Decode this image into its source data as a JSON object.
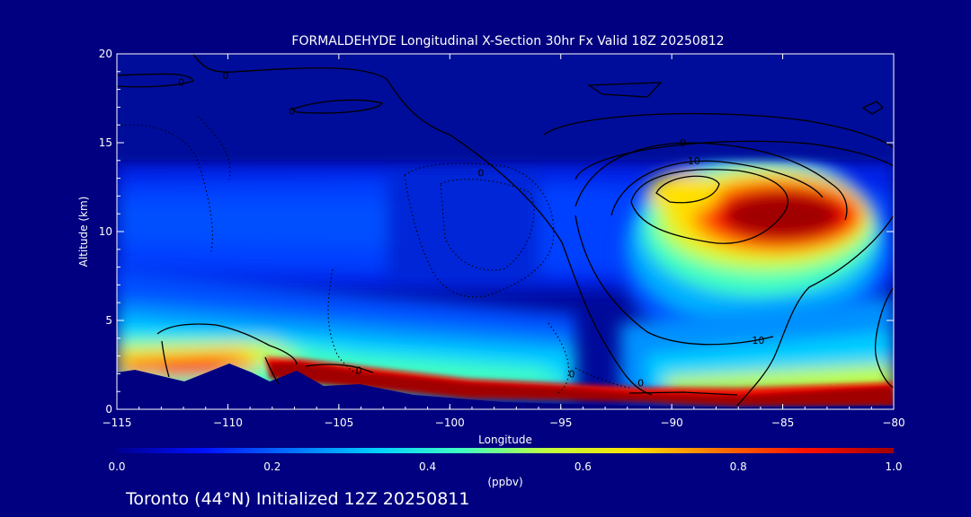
{
  "chart_data": {
    "type": "heatmap",
    "title": "FORMALDEHYDE Longitudinal X-Section 30hr  Fx Valid 18Z 20250812",
    "xlabel": "Longitude",
    "ylabel": "Altitude (km)",
    "xlim": [
      -115,
      -80
    ],
    "ylim": [
      0,
      20
    ],
    "x_ticks": [
      "-115",
      "-110",
      "-105",
      "-100",
      "-95",
      "-90",
      "-85",
      "-80"
    ],
    "y_ticks": [
      "0",
      "5",
      "10",
      "15",
      "20"
    ],
    "colorbar": {
      "label": "(ppbv)",
      "range": [
        0.0,
        1.0
      ],
      "ticks": [
        "0.0",
        "0.2",
        "0.4",
        "0.6",
        "0.8",
        "1.0"
      ],
      "colors": [
        "#000090",
        "#0010ff",
        "#0070ff",
        "#00d0ff",
        "#40ffc0",
        "#c0ff40",
        "#ffe000",
        "#ff7000",
        "#ff1000",
        "#a00000"
      ]
    },
    "grid": false,
    "contour_labels": [
      {
        "text": "0",
        "lon": -112.1,
        "alt": 18.4
      },
      {
        "text": "0",
        "lon": -110.1,
        "alt": 18.8
      },
      {
        "text": "0",
        "lon": -107.1,
        "alt": 16.8
      },
      {
        "text": "0",
        "lon": -98.6,
        "alt": 13.3
      },
      {
        "text": "0",
        "lon": -89.5,
        "alt": 15.0
      },
      {
        "text": "0",
        "lon": -104.1,
        "alt": 2.2
      },
      {
        "text": "0",
        "lon": -94.5,
        "alt": 2.0
      },
      {
        "text": "0",
        "lon": -91.4,
        "alt": 1.5
      },
      {
        "text": "10",
        "lon": -89.0,
        "alt": 14.0
      },
      {
        "text": "10",
        "lon": -86.1,
        "alt": 3.9
      }
    ]
  },
  "footer": {
    "caption": "Toronto (44°N) Initialized 12Z 20250811"
  },
  "colors": {
    "background": "#000080",
    "plot_background": "#000a9a",
    "terrain": "#000080",
    "contour": "#000000",
    "text": "#ffffff"
  }
}
